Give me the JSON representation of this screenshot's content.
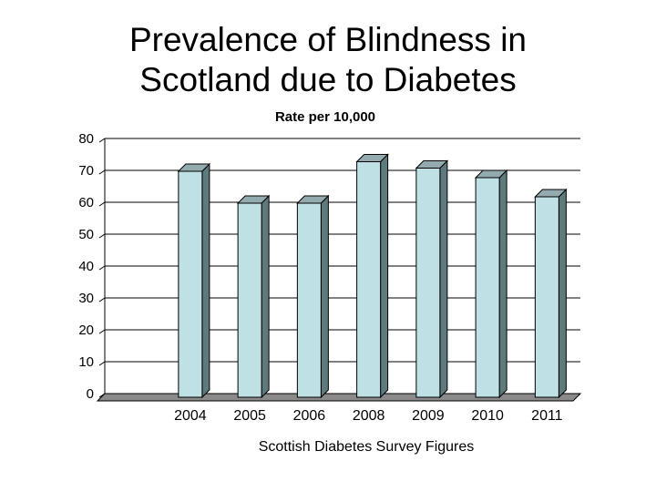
{
  "title_lines": [
    "Prevalence of Blindness in",
    "Scotland due to Diabetes"
  ],
  "chart_data": {
    "type": "bar",
    "title": "Prevalence of Blindness in Scotland due to Diabetes",
    "subtitle": "Rate per 10,000",
    "xlabel": "Scottish Diabetes Survey Figures",
    "ylabel": "",
    "categories": [
      "2004",
      "2005",
      "2006",
      "2008",
      "2009",
      "2010",
      "2011"
    ],
    "values": [
      72,
      62,
      62,
      75,
      73,
      70,
      64
    ],
    "ylim": [
      0,
      80
    ],
    "yticks": [
      0,
      10,
      20,
      30,
      40,
      50,
      60,
      70,
      80
    ],
    "grid": true,
    "style": "3d",
    "colors": {
      "bar_front": "#bfe0e5",
      "bar_side": "#5f7a7d",
      "bar_top": "#93abae",
      "floor": "#8a8a8a"
    }
  }
}
